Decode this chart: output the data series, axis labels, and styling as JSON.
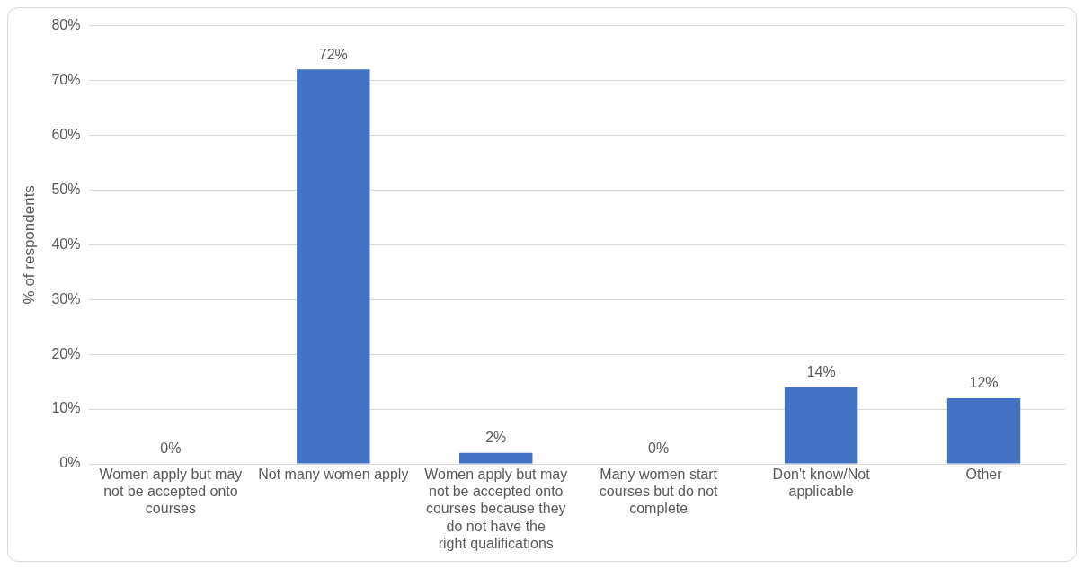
{
  "chart_data": {
    "type": "bar",
    "ylabel": "% of respondents",
    "categories": [
      "Women apply but may not be accepted onto courses",
      "Not many women apply",
      "Women apply but may not be accepted onto courses because they do not have the right qualifications",
      "Many women start courses but do not complete",
      "Don't know/Not applicable",
      "Other"
    ],
    "values": [
      0,
      72,
      2,
      0,
      14,
      12
    ],
    "value_labels": [
      "0%",
      "72%",
      "2%",
      "0%",
      "14%",
      "12%"
    ],
    "color": "#4472c4",
    "ylim": [
      0,
      80
    ],
    "yticks": [
      {
        "value": 0,
        "label": "0%"
      },
      {
        "value": 10,
        "label": "10%"
      },
      {
        "value": 20,
        "label": "20%"
      },
      {
        "value": 30,
        "label": "30%"
      },
      {
        "value": 40,
        "label": "40%"
      },
      {
        "value": 50,
        "label": "50%"
      },
      {
        "value": 60,
        "label": "60%"
      },
      {
        "value": 70,
        "label": "70%"
      },
      {
        "value": 80,
        "label": "80%"
      }
    ],
    "grid": "y",
    "legend": false
  }
}
